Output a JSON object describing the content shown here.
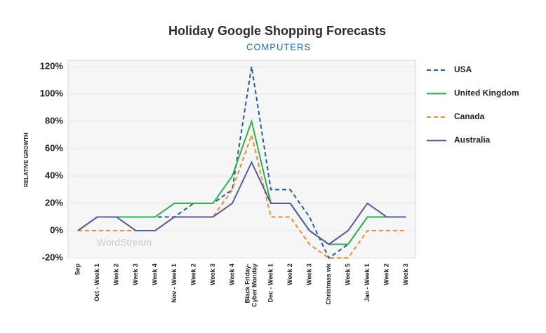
{
  "chart_data": {
    "type": "line",
    "title": "Holiday Google Shopping Forecasts",
    "subtitle": "COMPUTERS",
    "y_label": "RELATIVE GROWTH",
    "watermark": "WordStream",
    "categories": [
      "Sep",
      "Oct - Week 1",
      "Week 2",
      "Week 3",
      "Week 4",
      "Nov - Week 1",
      "Week 2",
      "Week 3",
      "Week 4",
      "Black Friday-Cyber Monday",
      "Dec - Week 1",
      "Week 2",
      "Week 3",
      "Christmas wk",
      "Week 5",
      "Jan - Week 1",
      "Week 2",
      "Week 3"
    ],
    "series": [
      {
        "name": "USA",
        "color": "#1f5f9e",
        "dashed": true,
        "values": [
          0,
          10,
          10,
          10,
          10,
          10,
          20,
          20,
          30,
          120,
          30,
          30,
          10,
          -20,
          -10,
          10,
          10,
          10
        ]
      },
      {
        "name": "United Kingdom",
        "color": "#2db34a",
        "dashed": false,
        "values": [
          0,
          10,
          10,
          10,
          10,
          20,
          20,
          20,
          40,
          80,
          20,
          20,
          0,
          -10,
          -10,
          10,
          10,
          10
        ]
      },
      {
        "name": "Canada",
        "color": "#f08a3c",
        "dashed": true,
        "values": [
          0,
          0,
          0,
          0,
          0,
          10,
          10,
          10,
          30,
          70,
          10,
          10,
          -10,
          -20,
          -20,
          0,
          0,
          0
        ]
      },
      {
        "name": "Australia",
        "color": "#5b5ba0",
        "dashed": false,
        "values": [
          0,
          10,
          10,
          0,
          0,
          10,
          10,
          10,
          20,
          50,
          20,
          20,
          0,
          -10,
          0,
          20,
          10,
          10
        ]
      }
    ],
    "ylim": [
      -20,
      120
    ],
    "yticks": [
      {
        "value": -20,
        "label": "-20%"
      },
      {
        "value": 0,
        "label": "0%"
      },
      {
        "value": 20,
        "label": "20%"
      },
      {
        "value": 40,
        "label": "40%"
      },
      {
        "value": 60,
        "label": "60%"
      },
      {
        "value": 80,
        "label": "80%"
      },
      {
        "value": 100,
        "label": "100%"
      },
      {
        "value": 120,
        "label": "120%"
      }
    ],
    "grid": true,
    "legend": "right"
  }
}
